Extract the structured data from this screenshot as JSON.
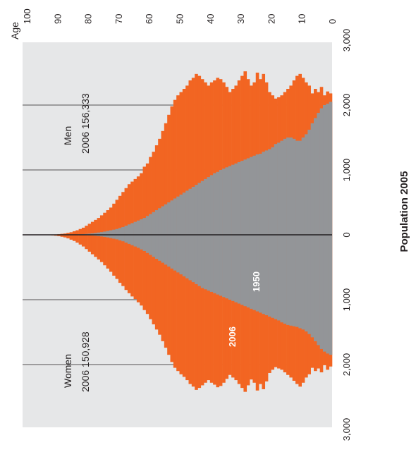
{
  "chart_data": {
    "type": "area",
    "title": "Population 2005",
    "orientation": "population pyramid, rotated 90° (age axis across the top, population axis on the right)",
    "age_axis": {
      "label": "Age",
      "ticks": [
        100,
        90,
        80,
        70,
        60,
        50,
        40,
        30,
        20,
        10,
        0
      ],
      "range": [
        0,
        101
      ]
    },
    "population_axis": {
      "ticks": [
        "3,000",
        "2,000",
        "1,000",
        "0",
        "1,000",
        "2,000",
        "3,000"
      ],
      "range": [
        -3000,
        3000
      ]
    },
    "annotations": {
      "men_label": "Men",
      "men_total": "2006  156,333",
      "women_label": "Women",
      "women_total": "2006  150,928",
      "label_1950": "1950",
      "label_2006": "2006"
    },
    "colors": {
      "y2006": "#f26522",
      "y1950": "#939598",
      "background": "#e6e7e8"
    },
    "series": [
      {
        "name": "2006",
        "age": [
          0,
          1,
          2,
          3,
          4,
          5,
          6,
          7,
          8,
          9,
          10,
          11,
          12,
          13,
          14,
          15,
          16,
          17,
          18,
          19,
          20,
          21,
          22,
          23,
          24,
          25,
          26,
          27,
          28,
          29,
          30,
          31,
          32,
          33,
          34,
          35,
          36,
          37,
          38,
          39,
          40,
          41,
          42,
          43,
          44,
          45,
          46,
          47,
          48,
          49,
          50,
          51,
          52,
          53,
          54,
          55,
          56,
          57,
          58,
          59,
          60,
          61,
          62,
          63,
          64,
          65,
          66,
          67,
          68,
          69,
          70,
          71,
          72,
          73,
          74,
          75,
          76,
          77,
          78,
          79,
          80,
          81,
          82,
          83,
          84,
          85,
          86,
          87,
          88,
          89,
          90,
          91,
          92,
          93,
          94,
          95,
          96,
          97,
          98,
          99,
          100
        ],
        "men": [
          2180,
          2210,
          2150,
          2280,
          2200,
          2250,
          2180,
          2300,
          2350,
          2420,
          2480,
          2450,
          2380,
          2300,
          2250,
          2200,
          2150,
          2120,
          2100,
          2150,
          2200,
          2350,
          2480,
          2400,
          2500,
          2350,
          2300,
          2400,
          2520,
          2450,
          2380,
          2300,
          2250,
          2200,
          2280,
          2350,
          2400,
          2420,
          2380,
          2350,
          2300,
          2350,
          2400,
          2450,
          2480,
          2420,
          2380,
          2300,
          2250,
          2200,
          2150,
          2080,
          1980,
          1850,
          1720,
          1600,
          1480,
          1380,
          1280,
          1200,
          1100,
          1050,
          950,
          900,
          860,
          820,
          780,
          720,
          660,
          600,
          540,
          480,
          420,
          380,
          340,
          300,
          260,
          230,
          200,
          170,
          140,
          110,
          90,
          70,
          55,
          40,
          30,
          20,
          15,
          10,
          6,
          4,
          3,
          2,
          1,
          1,
          0,
          0,
          0,
          0,
          0
        ],
        "women": [
          2030,
          2080,
          2010,
          2120,
          2060,
          2100,
          2050,
          2150,
          2200,
          2280,
          2340,
          2300,
          2250,
          2200,
          2160,
          2120,
          2080,
          2060,
          2040,
          2080,
          2130,
          2260,
          2380,
          2300,
          2400,
          2280,
          2230,
          2320,
          2420,
          2360,
          2300,
          2240,
          2200,
          2160,
          2220,
          2280,
          2330,
          2350,
          2310,
          2280,
          2240,
          2280,
          2320,
          2360,
          2390,
          2340,
          2300,
          2240,
          2190,
          2150,
          2100,
          2050,
          1960,
          1850,
          1740,
          1640,
          1540,
          1460,
          1380,
          1300,
          1220,
          1160,
          1090,
          1040,
          990,
          950,
          900,
          850,
          790,
          740,
          680,
          630,
          570,
          520,
          470,
          420,
          380,
          340,
          300,
          260,
          220,
          180,
          150,
          120,
          95,
          75,
          55,
          40,
          30,
          20,
          14,
          9,
          6,
          4,
          2,
          1,
          1,
          0,
          0,
          0,
          0
        ]
      },
      {
        "name": "1950",
        "age": [
          0,
          1,
          2,
          3,
          4,
          5,
          6,
          7,
          8,
          9,
          10,
          11,
          12,
          13,
          14,
          15,
          16,
          17,
          18,
          19,
          20,
          21,
          22,
          23,
          24,
          25,
          26,
          27,
          28,
          29,
          30,
          31,
          32,
          33,
          34,
          35,
          36,
          37,
          38,
          39,
          40,
          41,
          42,
          43,
          44,
          45,
          46,
          47,
          48,
          49,
          50,
          51,
          52,
          53,
          54,
          55,
          56,
          57,
          58,
          59,
          60,
          61,
          62,
          63,
          64,
          65,
          66,
          67,
          68,
          69,
          70,
          71,
          72,
          73,
          74,
          75,
          76,
          77,
          78,
          79,
          80,
          81,
          82,
          83,
          84,
          85,
          86,
          87,
          88,
          89,
          90,
          91,
          92,
          93,
          94,
          95,
          96,
          97,
          98,
          99,
          100
        ],
        "men": [
          2050,
          2020,
          2000,
          1950,
          1880,
          1800,
          1720,
          1620,
          1550,
          1500,
          1450,
          1450,
          1480,
          1500,
          1500,
          1480,
          1450,
          1420,
          1400,
          1350,
          1320,
          1300,
          1280,
          1250,
          1240,
          1220,
          1200,
          1180,
          1160,
          1140,
          1120,
          1100,
          1080,
          1060,
          1040,
          1020,
          1000,
          970,
          950,
          920,
          890,
          860,
          830,
          800,
          770,
          740,
          710,
          680,
          650,
          620,
          590,
          560,
          530,
          500,
          470,
          440,
          410,
          380,
          350,
          320,
          290,
          260,
          240,
          220,
          200,
          180,
          160,
          140,
          120,
          105,
          90,
          80,
          70,
          60,
          50,
          42,
          35,
          28,
          22,
          18,
          14,
          10,
          8,
          6,
          4,
          3,
          2,
          1,
          1,
          0,
          0,
          0,
          0,
          0,
          0,
          0,
          0,
          0,
          0,
          0,
          0
        ],
        "women": [
          1850,
          1830,
          1800,
          1760,
          1700,
          1640,
          1580,
          1530,
          1490,
          1460,
          1440,
          1420,
          1410,
          1400,
          1390,
          1370,
          1350,
          1320,
          1300,
          1280,
          1260,
          1240,
          1220,
          1200,
          1180,
          1160,
          1140,
          1120,
          1100,
          1080,
          1060,
          1040,
          1020,
          1000,
          980,
          960,
          940,
          920,
          900,
          880,
          860,
          840,
          820,
          790,
          760,
          730,
          700,
          670,
          640,
          610,
          580,
          550,
          520,
          490,
          460,
          430,
          400,
          370,
          340,
          310,
          280,
          250,
          225,
          200,
          180,
          160,
          140,
          120,
          100,
          85,
          70,
          60,
          50,
          40,
          32,
          25,
          20,
          15,
          11,
          8,
          6,
          4,
          3,
          2,
          1,
          1,
          0,
          0,
          0,
          0,
          0,
          0,
          0,
          0,
          0,
          0,
          0,
          0,
          0,
          0,
          0
        ]
      }
    ]
  }
}
